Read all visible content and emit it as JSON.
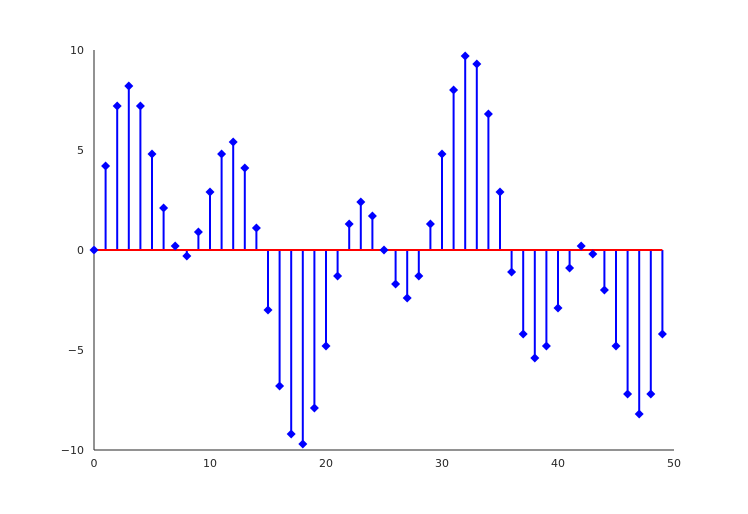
{
  "chart_data": {
    "type": "stem",
    "title": "",
    "xlabel": "",
    "ylabel": "",
    "xlim": [
      0,
      50
    ],
    "ylim": [
      -10,
      10
    ],
    "x_ticks": [
      0,
      10,
      20,
      30,
      40,
      50
    ],
    "x_tick_labels": [
      "0",
      "10",
      "20",
      "30",
      "40",
      "50"
    ],
    "y_ticks": [
      -10,
      -5,
      0,
      5,
      10
    ],
    "y_tick_labels": [
      "−10",
      "−5",
      "0",
      "5",
      "10"
    ],
    "grid": false,
    "baseline": 0,
    "colors": {
      "stem": "#0000ff",
      "marker": "#0000ff",
      "baseline": "#ff0000",
      "axis": "#262626"
    },
    "series": [
      {
        "x": [
          0,
          1,
          2,
          3,
          4,
          5,
          6,
          7,
          8,
          9,
          10,
          11,
          12,
          13,
          14,
          15,
          16,
          17,
          18,
          19,
          20,
          21,
          22,
          23,
          24,
          25,
          26,
          27,
          28,
          29,
          30,
          31,
          32,
          33,
          34,
          35,
          36,
          37,
          38,
          39,
          40,
          41,
          42,
          43,
          44,
          45,
          46,
          47,
          48,
          49
        ],
        "y": [
          0,
          4.2,
          7.2,
          8.2,
          7.2,
          4.8,
          2.1,
          0.2,
          -0.3,
          0.9,
          2.9,
          4.8,
          5.4,
          4.1,
          1.1,
          -3.0,
          -6.8,
          -9.2,
          -9.7,
          -7.9,
          -4.8,
          -1.3,
          1.3,
          2.4,
          1.7,
          0.0,
          -1.7,
          -2.4,
          -1.3,
          1.3,
          4.8,
          8.0,
          9.7,
          9.3,
          6.8,
          2.9,
          -1.1,
          -4.2,
          -5.4,
          -4.8,
          -2.9,
          -0.9,
          0.2,
          -0.2,
          -2.0,
          -4.8,
          -7.2,
          -8.2,
          -7.2,
          -4.2
        ]
      }
    ]
  }
}
